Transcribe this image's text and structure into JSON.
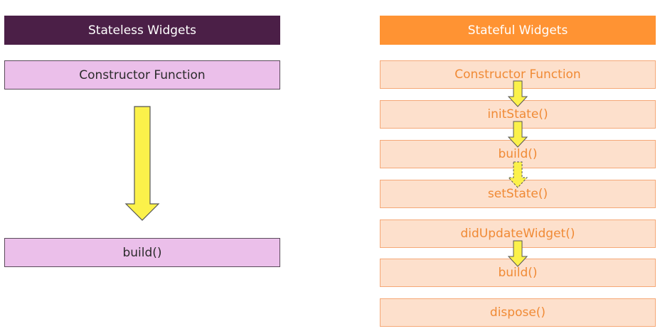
{
  "stateless": {
    "title": "Stateless Widgets",
    "items": [
      "Constructor Function",
      "build()"
    ]
  },
  "stateful": {
    "title": "Stateful Widgets",
    "items": [
      "Constructor Function",
      "initState()",
      "build()",
      "setState()",
      "didUpdateWidget()",
      "build()",
      "dispose()"
    ]
  },
  "colors": {
    "stateless_header": "#4b1f47",
    "stateless_box": "#ebbfea",
    "stateful_header": "#ff9333",
    "stateful_box": "#fde0cc",
    "stateful_text": "#f08a35",
    "arrow_fill": "#fbf14a"
  }
}
